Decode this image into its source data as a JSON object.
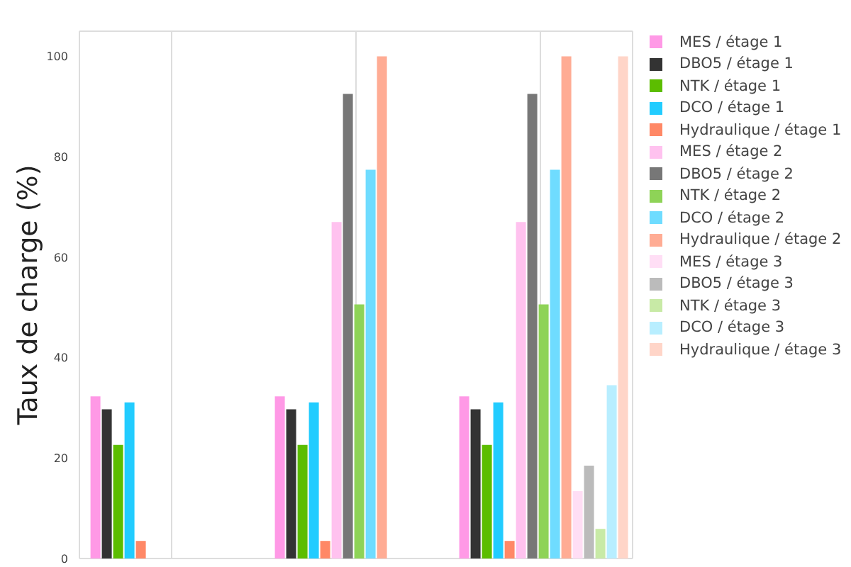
{
  "chart_data": {
    "type": "bar",
    "ylabel": "Taux de charge (%)",
    "categories": [
      null,
      null,
      null
    ],
    "series": [
      {
        "name": "MES / étage 1",
        "color": "#ff99e6",
        "values": [
          32.3,
          32.3,
          32.3
        ]
      },
      {
        "name": "DBO5 / étage 1",
        "color": "#333333",
        "values": [
          29.7,
          29.7,
          29.7
        ]
      },
      {
        "name": "NTK / étage 1",
        "color": "#5cbd00",
        "values": [
          22.6,
          22.6,
          22.6
        ]
      },
      {
        "name": "DCO / étage 1",
        "color": "#22ccff",
        "values": [
          31.1,
          31.1,
          31.1
        ]
      },
      {
        "name": "Hydraulique / étage 1",
        "color": "#ff8866",
        "values": [
          3.5,
          3.5,
          3.5
        ]
      },
      {
        "name": "MES / étage 2",
        "color": "#ffc2ef",
        "values": [
          null,
          67,
          67
        ]
      },
      {
        "name": "DBO5 / étage 2",
        "color": "#777777",
        "values": [
          null,
          92.5,
          92.5
        ]
      },
      {
        "name": "NTK / étage 2",
        "color": "#8ed357",
        "values": [
          null,
          50.6,
          50.6
        ]
      },
      {
        "name": "DCO / étage 2",
        "color": "#6fdcff",
        "values": [
          null,
          77.4,
          77.4
        ]
      },
      {
        "name": "Hydraulique / étage 2",
        "color": "#ffac94",
        "values": [
          null,
          100,
          100
        ]
      },
      {
        "name": "MES / étage 3",
        "color": "#ffdef5",
        "values": [
          null,
          null,
          13.4
        ]
      },
      {
        "name": "DBO5 / étage 3",
        "color": "#bbbbbb",
        "values": [
          null,
          null,
          18.5
        ]
      },
      {
        "name": "NTK / étage 3",
        "color": "#c8eaa6",
        "values": [
          null,
          null,
          5.9
        ]
      },
      {
        "name": "DCO / étage 3",
        "color": "#b8eeff",
        "values": [
          null,
          null,
          34.5
        ]
      },
      {
        "name": "Hydraulique / étage 3",
        "color": "#ffd5c8",
        "values": [
          null,
          null,
          100
        ]
      }
    ],
    "ylim": [
      0,
      105
    ],
    "yticks": [
      0,
      20,
      40,
      60,
      80,
      100
    ],
    "grid": true,
    "legend": "top right"
  }
}
